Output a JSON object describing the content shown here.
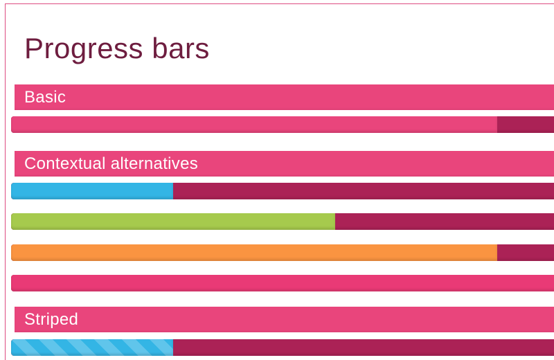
{
  "page": {
    "title": "Progress bars"
  },
  "colors": {
    "primary_pink": "#e9457c",
    "track_maroon": "#ab2256",
    "info_blue": "#33b5e5",
    "success_green": "#a6ca4d",
    "warning_orange": "#fa9441",
    "danger_pink": "#e93a76",
    "title_text": "#6e1d3f",
    "header_text": "#ffffff",
    "panel_border": "#dd4b80",
    "background": "#ffffff"
  },
  "sections": [
    {
      "label": "Basic",
      "bars": [
        {
          "name": "basic-progress",
          "variant": "primary",
          "value_percent": 75,
          "striped": false
        }
      ]
    },
    {
      "label": "Contextual alternatives",
      "bars": [
        {
          "name": "info-progress",
          "variant": "info",
          "value_percent": 25,
          "striped": false
        },
        {
          "name": "success-progress",
          "variant": "success",
          "value_percent": 50,
          "striped": false
        },
        {
          "name": "warning-progress",
          "variant": "warning",
          "value_percent": 75,
          "striped": false
        },
        {
          "name": "danger-progress",
          "variant": "danger",
          "value_percent": 100,
          "striped": false
        }
      ]
    },
    {
      "label": "Striped",
      "bars": [
        {
          "name": "striped-info-progress",
          "variant": "info",
          "value_percent": 25,
          "striped": true
        }
      ]
    }
  ]
}
